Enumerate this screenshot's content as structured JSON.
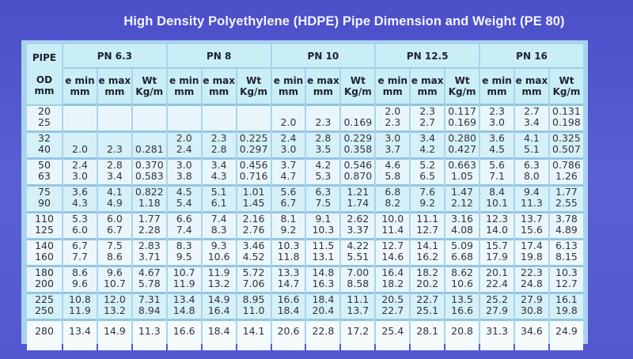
{
  "title": "High Density Polyethylene (HDPE) Pipe Dimension and Weight (PE 80)",
  "header": {
    "od_label": [
      "PIPE",
      "OD",
      "mm"
    ],
    "pressure_classes": [
      "PN 6.3",
      "PN 8",
      "PN 10",
      "PN 12.5",
      "PN 16"
    ],
    "sub_columns": [
      {
        "line1": "e min",
        "line2": "mm"
      },
      {
        "line1": "e max",
        "line2": "mm"
      },
      {
        "line1": "Wt",
        "line2": "Kg/m"
      }
    ]
  },
  "rows": [
    {
      "od": [
        "20",
        "25"
      ],
      "pn": [
        [
          [
            "",
            ""
          ],
          [
            "",
            ""
          ],
          [
            "",
            ""
          ]
        ],
        [
          [
            "",
            ""
          ],
          [
            "",
            ""
          ],
          [
            "",
            ""
          ]
        ],
        [
          [
            "",
            "2.0"
          ],
          [
            "",
            "2.3"
          ],
          [
            "",
            "0.169"
          ]
        ],
        [
          [
            "2.0",
            "2.3"
          ],
          [
            "2.3",
            "2.7"
          ],
          [
            "0.117",
            "0.169"
          ]
        ],
        [
          [
            "2.3",
            "3.0"
          ],
          [
            "2.7",
            "3.4"
          ],
          [
            "0.131",
            "0.198"
          ]
        ]
      ]
    },
    {
      "od": [
        "32",
        "40"
      ],
      "pn": [
        [
          [
            "",
            "2.0"
          ],
          [
            "",
            "2.3"
          ],
          [
            "",
            "0.281"
          ]
        ],
        [
          [
            "2.0",
            "2.4"
          ],
          [
            "2.3",
            "2.8"
          ],
          [
            "0.225",
            "0.297"
          ]
        ],
        [
          [
            "2.4",
            "3.0"
          ],
          [
            "2.8",
            "3.5"
          ],
          [
            "0.229",
            "0.358"
          ]
        ],
        [
          [
            "3.0",
            "3.7"
          ],
          [
            "3.4",
            "4.2"
          ],
          [
            "0.280",
            "0.427"
          ]
        ],
        [
          [
            "3.6",
            "4.5"
          ],
          [
            "4.1",
            "5.1"
          ],
          [
            "0.325",
            "0.507"
          ]
        ]
      ]
    },
    {
      "od": [
        "50",
        "63"
      ],
      "pn": [
        [
          [
            "2.4",
            "3.0"
          ],
          [
            "2.8",
            "3.4"
          ],
          [
            "0.370",
            "0.583"
          ]
        ],
        [
          [
            "3.0",
            "3.8"
          ],
          [
            "3.4",
            "4.3"
          ],
          [
            "0.456",
            "0.716"
          ]
        ],
        [
          [
            "3.7",
            "4.7"
          ],
          [
            "4.2",
            "5.3"
          ],
          [
            "0.546",
            "0.870"
          ]
        ],
        [
          [
            "4.6",
            "5.8"
          ],
          [
            "5.2",
            "6.5"
          ],
          [
            "0.663",
            "1.05"
          ]
        ],
        [
          [
            "5.6",
            "7.1"
          ],
          [
            "6.3",
            "8.0"
          ],
          [
            "0.786",
            "1.26"
          ]
        ]
      ]
    },
    {
      "od": [
        "75",
        "90"
      ],
      "pn": [
        [
          [
            "3.6",
            "4.3"
          ],
          [
            "4.1",
            "4.9"
          ],
          [
            "0.822",
            "1.18"
          ]
        ],
        [
          [
            "4.5",
            "5.4"
          ],
          [
            "5.1",
            "6.1"
          ],
          [
            "1.01",
            "1.45"
          ]
        ],
        [
          [
            "5.6",
            "6.7"
          ],
          [
            "6.3",
            "7.5"
          ],
          [
            "1.21",
            "1.74"
          ]
        ],
        [
          [
            "6.8",
            "8.2"
          ],
          [
            "7.6",
            "9.2"
          ],
          [
            "1.47",
            "2.12"
          ]
        ],
        [
          [
            "8.4",
            "10.1"
          ],
          [
            "9.4",
            "11.3"
          ],
          [
            "1.77",
            "2.55"
          ]
        ]
      ]
    },
    {
      "od": [
        "110",
        "125"
      ],
      "pn": [
        [
          [
            "5.3",
            "6.0"
          ],
          [
            "6.0",
            "6.7"
          ],
          [
            "1.77",
            "2.28"
          ]
        ],
        [
          [
            "6.6",
            "7.4"
          ],
          [
            "7.4",
            "8.3"
          ],
          [
            "2.16",
            "2.76"
          ]
        ],
        [
          [
            "8.1",
            "9.2"
          ],
          [
            "9.1",
            "10.3"
          ],
          [
            "2.62",
            "3.37"
          ]
        ],
        [
          [
            "10.0",
            "11.4"
          ],
          [
            "11.1",
            "12.7"
          ],
          [
            "3.16",
            "4.08"
          ]
        ],
        [
          [
            "12.3",
            "14.0"
          ],
          [
            "13.7",
            "15.6"
          ],
          [
            "3.78",
            "4.89"
          ]
        ]
      ]
    },
    {
      "od": [
        "140",
        "160"
      ],
      "pn": [
        [
          [
            "6.7",
            "7.7"
          ],
          [
            "7.5",
            "8.6"
          ],
          [
            "2.83",
            "3.71"
          ]
        ],
        [
          [
            "8.3",
            "9.5"
          ],
          [
            "9.3",
            "10.6"
          ],
          [
            "3.46",
            "4.52"
          ]
        ],
        [
          [
            "10.3",
            "11.8"
          ],
          [
            "11.5",
            "13.1"
          ],
          [
            "4.22",
            "5.51"
          ]
        ],
        [
          [
            "12.7",
            "14.6"
          ],
          [
            "14.1",
            "16.2"
          ],
          [
            "5.09",
            "6.68"
          ]
        ],
        [
          [
            "15.7",
            "17.9"
          ],
          [
            "17.4",
            "19.8"
          ],
          [
            "6.13",
            "8.15"
          ]
        ]
      ]
    },
    {
      "od": [
        "180",
        "200"
      ],
      "pn": [
        [
          [
            "8.6",
            "9.6"
          ],
          [
            "9.6",
            "10.7"
          ],
          [
            "4.67",
            "5.78"
          ]
        ],
        [
          [
            "10.7",
            "11.9"
          ],
          [
            "11.9",
            "13.2"
          ],
          [
            "5.72",
            "7.06"
          ]
        ],
        [
          [
            "13.3",
            "14.7"
          ],
          [
            "14.8",
            "16.3"
          ],
          [
            "7.00",
            "8.58"
          ]
        ],
        [
          [
            "16.4",
            "18.2"
          ],
          [
            "18.2",
            "20.2"
          ],
          [
            "8.62",
            "10.6"
          ]
        ],
        [
          [
            "20.1",
            "22.4"
          ],
          [
            "22.3",
            "24.8"
          ],
          [
            "10.3",
            "12.7"
          ]
        ]
      ]
    },
    {
      "od": [
        "225",
        "250"
      ],
      "pn": [
        [
          [
            "10.8",
            "11.9"
          ],
          [
            "12.0",
            "13.2"
          ],
          [
            "7.31",
            "8.94"
          ]
        ],
        [
          [
            "13.4",
            "14.8"
          ],
          [
            "14.9",
            "16.4"
          ],
          [
            "8.95",
            "11.0"
          ]
        ],
        [
          [
            "16.6",
            "18.4"
          ],
          [
            "18.4",
            "20.4"
          ],
          [
            "11.1",
            "13.7"
          ]
        ],
        [
          [
            "20.5",
            "22.7"
          ],
          [
            "22.7",
            "25.1"
          ],
          [
            "13.5",
            "16.6"
          ]
        ],
        [
          [
            "25.2",
            "27.9"
          ],
          [
            "27.9",
            "30.8"
          ],
          [
            "16.1",
            "19.8"
          ]
        ]
      ]
    },
    {
      "od": [
        "280",
        ""
      ],
      "pn": [
        [
          [
            "13.4",
            ""
          ],
          [
            "14.9",
            ""
          ],
          [
            "11.3",
            ""
          ]
        ],
        [
          [
            "16.6",
            ""
          ],
          [
            "18.4",
            ""
          ],
          [
            "14.1",
            ""
          ]
        ],
        [
          [
            "20.6",
            ""
          ],
          [
            "22.8",
            ""
          ],
          [
            "17.2",
            ""
          ]
        ],
        [
          [
            "25.4",
            ""
          ],
          [
            "28.1",
            ""
          ],
          [
            "20.8",
            ""
          ]
        ],
        [
          [
            "31.3",
            ""
          ],
          [
            "34.6",
            ""
          ],
          [
            "24.9",
            ""
          ]
        ]
      ]
    }
  ],
  "colors": {
    "background": "#5458d0",
    "table_frame": "#a9d3ef",
    "header_fill": "#c9eef6",
    "row_fill_light": "#e8f6fb",
    "row_fill_tint": "#d6f0f8",
    "title_text": "#f4f4ff"
  }
}
